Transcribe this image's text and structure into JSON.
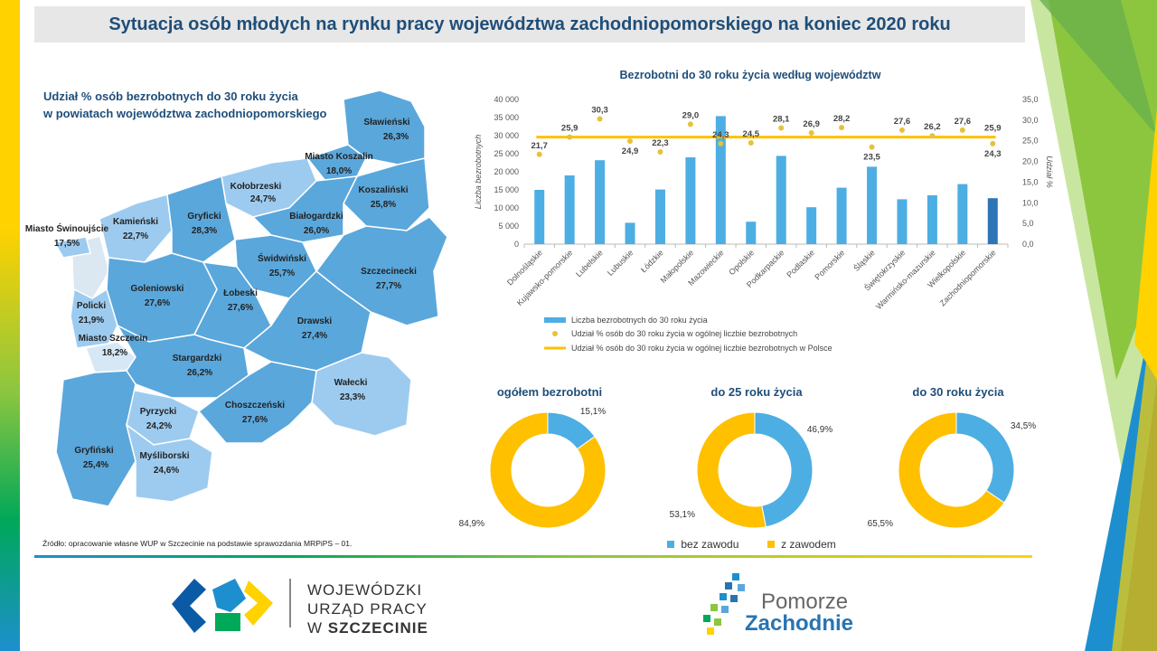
{
  "title": "Sytuacja osób młodych na rynku pracy województwa zachodniopomorskiego na koniec 2020 roku",
  "map": {
    "title_line1": "Udział % osób bezrobotnych do 30 roku życia",
    "title_line2": "w powiatach województwa zachodniopomorskiego",
    "regions": [
      {
        "name": "Sławieński",
        "value": "26,3%"
      },
      {
        "name": "Miasto Koszalin",
        "value": "18,0%"
      },
      {
        "name": "Kołobrzeski",
        "value": "24,7%"
      },
      {
        "name": "Koszaliński",
        "value": "25,8%"
      },
      {
        "name": "Kamieński",
        "value": "22,7%"
      },
      {
        "name": "Gryficki",
        "value": "28,3%"
      },
      {
        "name": "Białogardzki",
        "value": "26,0%"
      },
      {
        "name": "Miasto Świnoujście",
        "value": "17,5%"
      },
      {
        "name": "Świdwiński",
        "value": "25,7%"
      },
      {
        "name": "Goleniowski",
        "value": "27,6%"
      },
      {
        "name": "Łobeski",
        "value": "27,6%"
      },
      {
        "name": "Szczecinecki",
        "value": "27,7%"
      },
      {
        "name": "Policki",
        "value": "21,9%"
      },
      {
        "name": "Drawski",
        "value": "27,4%"
      },
      {
        "name": "Miasto Szczecin",
        "value": "18,2%"
      },
      {
        "name": "Stargardzki",
        "value": "26,2%"
      },
      {
        "name": "Wałecki",
        "value": "23,3%"
      },
      {
        "name": "Pyrzycki",
        "value": "24,2%"
      },
      {
        "name": "Choszczeński",
        "value": "27,6%"
      },
      {
        "name": "Gryfiński",
        "value": "25,4%"
      },
      {
        "name": "Myśliborski",
        "value": "24,6%"
      }
    ],
    "colors": {
      "dark": "#5aa7dc",
      "light": "#9dcbef",
      "water": "#e6eef5"
    }
  },
  "source": "Źródło: opracowanie własne WUP w Szczecinie na podstawie sprawozdania MRPiPS – 01.",
  "chart_data": [
    {
      "type": "bar",
      "title": "Bezrobotni do 30 roku życia według województw",
      "ylabel": "Liczba bezrobotnych",
      "y2label": "Udział %",
      "ylim": [
        0,
        40000
      ],
      "y2lim": [
        0,
        35
      ],
      "yticks": [
        "0",
        "5 000",
        "10 000",
        "15 000",
        "20 000",
        "25 000",
        "30 000",
        "35 000",
        "40 000"
      ],
      "y2ticks": [
        "0,0",
        "5,0",
        "10,0",
        "15,0",
        "20,0",
        "25,0",
        "30,0",
        "35,0"
      ],
      "categories": [
        "Dolnośląskie",
        "Kujawsko-pomorskie",
        "Lubelskie",
        "Lubuskie",
        "Łódzkie",
        "Małopolskie",
        "Mazowieckie",
        "Opolskie",
        "Podkarpackie",
        "Podlaskie",
        "Pomorskie",
        "Śląskie",
        "Świętokrzyskie",
        "Warmińsko-mazurskie",
        "Wielkopolskie",
        "Zachodniopomorskie"
      ],
      "series": [
        {
          "name": "Liczba bezrobotnych do 30 roku życia",
          "kind": "bar",
          "color": "#4daee3",
          "values": [
            15000,
            19000,
            23200,
            5900,
            15100,
            24000,
            35400,
            6200,
            24400,
            10200,
            15600,
            21400,
            12400,
            13500,
            16600,
            12700
          ]
        },
        {
          "name": "Udział % osób do 30 roku życia w ogólnej liczbie bezrobotnych",
          "kind": "scatter",
          "color": "#e8c13a",
          "values": [
            21.7,
            25.9,
            30.3,
            24.9,
            22.3,
            29.0,
            24.3,
            24.5,
            28.1,
            26.9,
            28.2,
            23.5,
            27.6,
            26.2,
            27.6,
            24.3
          ],
          "labels": [
            "21,7",
            "25,9",
            "30,3",
            "24,9",
            "22,3",
            "29,0",
            "24,3",
            "24,5",
            "28,1",
            "26,9",
            "28,2",
            "23,5",
            "27,6",
            "26,2",
            "27,6",
            "24,3"
          ]
        },
        {
          "name": "Udział % osób do 30 roku życia w ogólnej liczbie bezrobotnych w Polsce",
          "kind": "line",
          "color": "#ffc000",
          "value": 25.9,
          "label": "25,9"
        }
      ],
      "highlight_category": "Zachodniopomorskie",
      "highlight_color": "#2e75b6"
    },
    {
      "type": "pie",
      "title": "ogółem bezrobotni",
      "slices": [
        {
          "name": "bez zawodu",
          "value": 15.1,
          "label": "15,1%"
        },
        {
          "name": "z zawodem",
          "value": 84.9,
          "label": "84,9%"
        }
      ]
    },
    {
      "type": "pie",
      "title": "do 25 roku życia",
      "slices": [
        {
          "name": "bez zawodu",
          "value": 46.9,
          "label": "46,9%"
        },
        {
          "name": "z zawodem",
          "value": 53.1,
          "label": "53,1%"
        }
      ]
    },
    {
      "type": "pie",
      "title": "do 30 roku życia",
      "slices": [
        {
          "name": "bez zawodu",
          "value": 34.5,
          "label": "34,5%"
        },
        {
          "name": "z zawodem",
          "value": 65.5,
          "label": "65,5%"
        }
      ]
    }
  ],
  "donut_legend": [
    {
      "name": "bez zawodu",
      "color": "#4daee3"
    },
    {
      "name": "z zawodem",
      "color": "#ffc000"
    }
  ],
  "logo_wup": {
    "line1": "WOJEWÓDZKI",
    "line2": "URZĄD PRACY",
    "line3_prefix": "W",
    "line3_city": "SZCZECINIE"
  },
  "logo_pz": {
    "line1": "Pomorze",
    "line2": "Zachodnie"
  }
}
